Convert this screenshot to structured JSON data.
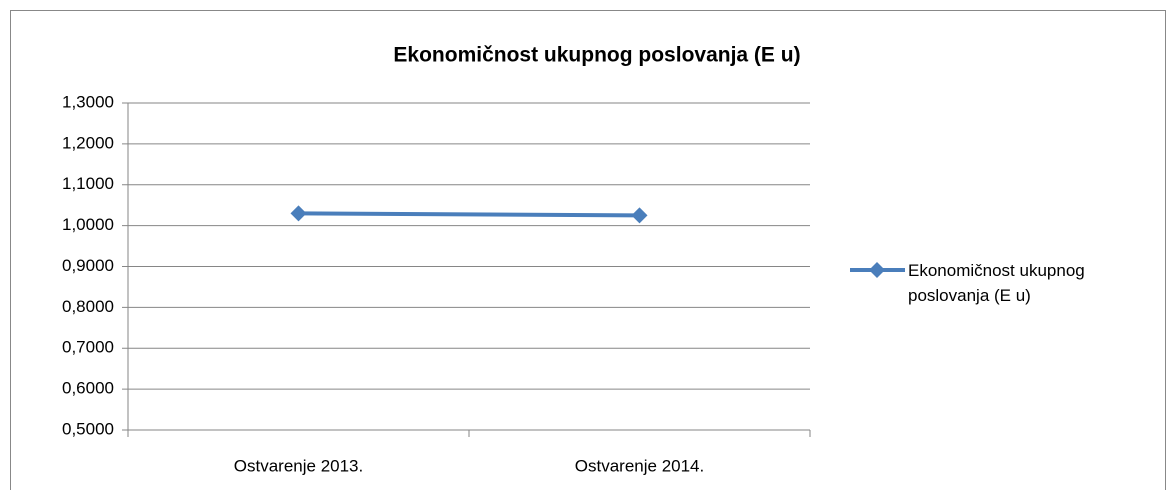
{
  "chart_data": {
    "type": "line",
    "title": "Ekonomičnost ukupnog poslovanja (E u)",
    "categories": [
      "Ostvarenje 2013.",
      "Ostvarenje 2014."
    ],
    "series": [
      {
        "name": "Ekonomičnost ukupnog poslovanja (E u)",
        "color": "#4a7ebb",
        "values": [
          1.03,
          1.025
        ]
      }
    ],
    "ylim": [
      0.5,
      1.3
    ],
    "yticks": [
      {
        "value": 0.5,
        "label": "0,5000"
      },
      {
        "value": 0.6,
        "label": "0,6000"
      },
      {
        "value": 0.7,
        "label": "0,7000"
      },
      {
        "value": 0.8,
        "label": "0,8000"
      },
      {
        "value": 0.9,
        "label": "0,9000"
      },
      {
        "value": 1.0,
        "label": "1,0000"
      },
      {
        "value": 1.1,
        "label": "1,1000"
      },
      {
        "value": 1.2,
        "label": "1,2000"
      },
      {
        "value": 1.3,
        "label": "1,3000"
      }
    ],
    "grid": true,
    "legend": "right"
  }
}
